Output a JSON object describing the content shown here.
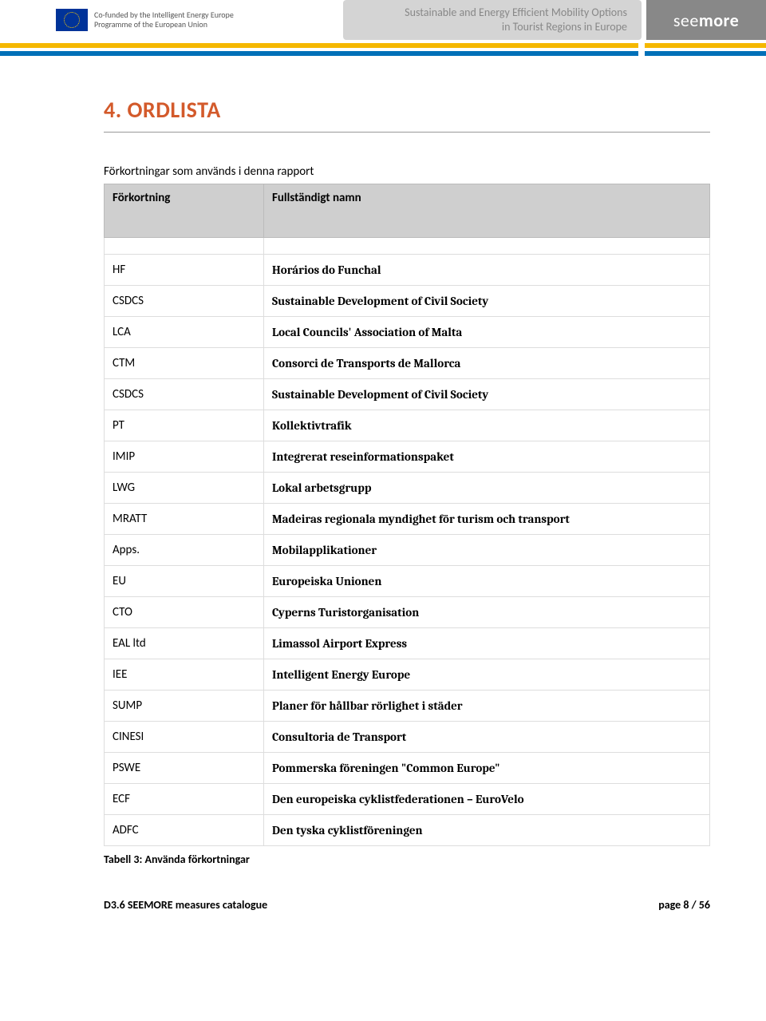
{
  "header": {
    "funding_line1": "Co-funded by the Intelligent Energy Europe",
    "funding_line2": "Programme of the European Union",
    "tagline_line1": "Sustainable and Energy Efficient Mobility Options",
    "tagline_line2": "in Tourist Regions in Europe",
    "logo_see": "see",
    "logo_more": "more"
  },
  "colors": {
    "accent_orange": "#d35a2b",
    "bar_yellow": "#f5b800",
    "bar_blue": "#0070b8",
    "header_grey": "#d4d4d4",
    "logo_bg": "#888888"
  },
  "section_title": "4. ORDLISTA",
  "intro_text": "Förkortningar som används i denna rapport",
  "table": {
    "header_col1": "Förkortning",
    "header_col2": "Fullständigt namn",
    "rows": [
      {
        "abbr": "HF",
        "full": "Horários do Funchal"
      },
      {
        "abbr": "CSDCS",
        "full": "Sustainable Development of Civil Society"
      },
      {
        "abbr": "LCA",
        "full": "Local Councils' Association of Malta"
      },
      {
        "abbr": "CTM",
        "full": "Consorci de Transports de Mallorca"
      },
      {
        "abbr": "CSDCS",
        "full": "Sustainable Development of Civil Society"
      },
      {
        "abbr": "PT",
        "full": "Kollektivtrafik"
      },
      {
        "abbr": "IMIP",
        "full": "Integrerat reseinformationspaket"
      },
      {
        "abbr": "LWG",
        "full": "Lokal arbetsgrupp"
      },
      {
        "abbr": "MRATT",
        "full": "Madeiras regionala myndighet för turism och transport"
      },
      {
        "abbr": "Apps.",
        "full": "Mobilapplikationer"
      },
      {
        "abbr": "EU",
        "full": "Europeiska Unionen"
      },
      {
        "abbr": "CTO",
        "full": "Cyperns Turistorganisation"
      },
      {
        "abbr": "EAL ltd",
        "full": "Limassol Airport Express"
      },
      {
        "abbr": "IEE",
        "full": "Intelligent Energy Europe"
      },
      {
        "abbr": "SUMP",
        "full": "Planer för hållbar rörlighet i städer"
      },
      {
        "abbr": "CINESI",
        "full": "Consultoria de Transport"
      },
      {
        "abbr": "PSWE",
        "full": "Pommerska föreningen \"Common Europe\""
      },
      {
        "abbr": "ECF",
        "full": "Den europeiska cyklistfederationen – EuroVelo"
      },
      {
        "abbr": "ADFC",
        "full": "Den tyska cyklistföreningen"
      }
    ]
  },
  "table_caption": "Tabell 3: Använda förkortningar",
  "footer": {
    "doc_title": "D3.6 SEEMORE measures catalogue",
    "page_label": "page 8 / 56"
  }
}
